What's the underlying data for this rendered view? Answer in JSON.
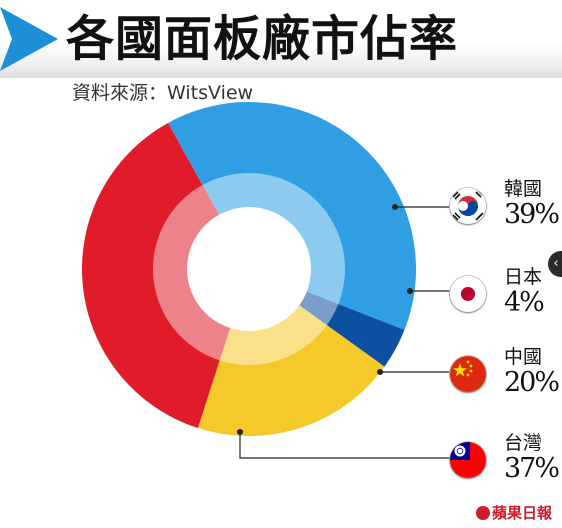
{
  "header": {
    "title": "各國面板廠市佔率",
    "source": "資料來源：WitsView"
  },
  "colors": {
    "korea": "#2f9ee3",
    "japan": "#0d4fa0",
    "china": "#f5c92a",
    "taiwan": "#e01c2a",
    "arrow": "#1d8fd6"
  },
  "chart_data": {
    "type": "pie",
    "title": "各國面板廠市佔率",
    "categories": [
      "韓國",
      "日本",
      "中國",
      "台灣"
    ],
    "values": [
      39,
      4,
      20,
      37
    ],
    "unit": "%",
    "legend_position": "right"
  },
  "legend": [
    {
      "country": "韓國",
      "pct": "39%",
      "flag": "korea-flag-icon"
    },
    {
      "country": "日本",
      "pct": "4%",
      "flag": "japan-flag-icon"
    },
    {
      "country": "中國",
      "pct": "20%",
      "flag": "china-flag-icon"
    },
    {
      "country": "台灣",
      "pct": "37%",
      "flag": "taiwan-flag-icon"
    }
  ],
  "publisher": {
    "name": "蘋果日報",
    "logo_icon": "apple-logo-icon"
  },
  "nav": {
    "arrow_label": "‹",
    "arrow_icon": "chevron-left-icon"
  }
}
